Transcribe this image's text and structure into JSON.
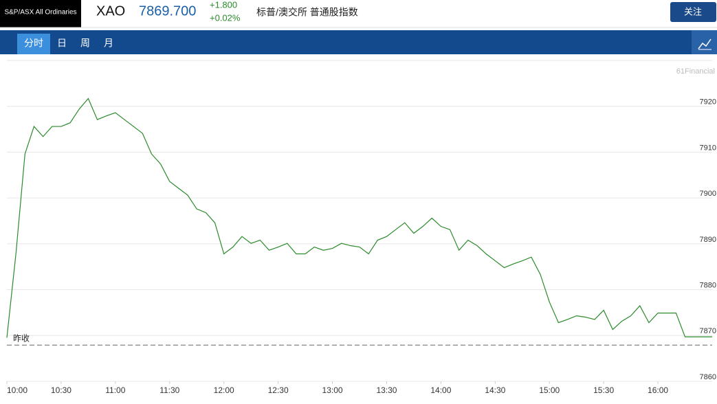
{
  "header": {
    "index_name": "S&P/ASX All Ordinaries",
    "symbol": "XAO",
    "price": "7869.700",
    "change": "+1.800",
    "change_pct": "+0.02%",
    "full_name": "标普/澳交所 普通股指数",
    "follow_button": "关注"
  },
  "tabs": [
    "分时",
    "日",
    "周",
    "月"
  ],
  "watermark": "61Financial",
  "chart_data": {
    "type": "line",
    "x": [
      "10:00",
      "10:05",
      "10:10",
      "10:15",
      "10:20",
      "10:25",
      "10:30",
      "10:35",
      "10:40",
      "10:45",
      "10:50",
      "10:55",
      "11:00",
      "11:05",
      "11:10",
      "11:15",
      "11:20",
      "11:25",
      "11:30",
      "11:35",
      "11:40",
      "11:45",
      "11:50",
      "11:55",
      "12:00",
      "12:05",
      "12:10",
      "12:15",
      "12:20",
      "12:25",
      "12:30",
      "12:35",
      "12:40",
      "12:45",
      "12:50",
      "12:55",
      "13:00",
      "13:05",
      "13:10",
      "13:15",
      "13:20",
      "13:25",
      "13:30",
      "13:35",
      "13:40",
      "13:45",
      "13:50",
      "13:55",
      "14:00",
      "14:05",
      "14:10",
      "14:15",
      "14:20",
      "14:25",
      "14:30",
      "14:35",
      "14:40",
      "14:45",
      "14:50",
      "14:55",
      "15:00",
      "15:05",
      "15:10",
      "15:15",
      "15:20",
      "15:25",
      "15:30",
      "15:35",
      "15:40",
      "15:45",
      "15:50",
      "15:55",
      "16:00",
      "16:05",
      "16:10",
      "16:15",
      "16:20",
      "16:25",
      "16:30"
    ],
    "series": [
      {
        "color": "#2a8a2a",
        "values": [
          7869.5,
          7887.8,
          7909.6,
          7915.6,
          7913.4,
          7915.6,
          7915.6,
          7916.4,
          7919.4,
          7921.7,
          7917.1,
          7917.9,
          7918.6,
          7917.1,
          7915.6,
          7914.1,
          7909.6,
          7907.4,
          7903.6,
          7902.1,
          7900.6,
          7897.6,
          7896.8,
          7894.6,
          7887.8,
          7889.3,
          7891.6,
          7890.1,
          7890.8,
          7888.6,
          7889.3,
          7890.1,
          7887.8,
          7887.8,
          7889.3,
          7888.6,
          7889.0,
          7890.1,
          7889.6,
          7889.3,
          7887.8,
          7890.8,
          7891.6,
          7893.1,
          7894.6,
          7892.3,
          7893.8,
          7895.6,
          7893.8,
          7893.1,
          7888.6,
          7890.8,
          7889.6,
          7887.8,
          7886.3,
          7884.8,
          7885.6,
          7886.3,
          7887.1,
          7883.3,
          7877.3,
          7872.8,
          7873.5,
          7874.3,
          7874.0,
          7873.5,
          7875.5,
          7871.3,
          7873.1,
          7874.3,
          7876.5,
          7872.8,
          7874.9,
          7874.9,
          7874.9,
          7869.7,
          7869.7,
          7869.7,
          7869.7
        ]
      }
    ],
    "xticks": [
      "10:00",
      "10:30",
      "11:00",
      "11:30",
      "12:00",
      "12:30",
      "13:00",
      "13:30",
      "14:00",
      "14:30",
      "15:00",
      "15:30",
      "16:00"
    ],
    "ylim": [
      7860,
      7930
    ],
    "yticks": [
      7860,
      7870,
      7880,
      7890,
      7900,
      7910,
      7920
    ],
    "grid": true,
    "prev_close": {
      "label": "昨收",
      "value": 7867.9
    }
  }
}
